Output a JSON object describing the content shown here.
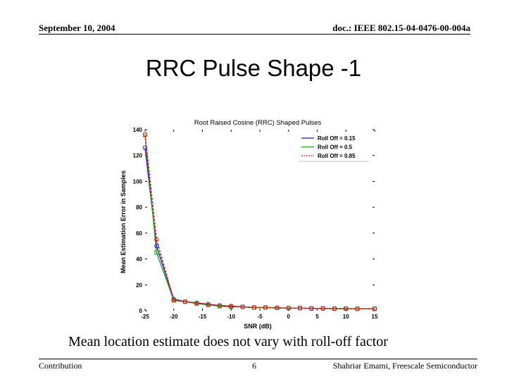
{
  "header": {
    "date": "September 10, 2004",
    "doc": "doc.: IEEE 802.15-04-0476-00-004a"
  },
  "slide_title": "RRC Pulse Shape -1",
  "caption": "Mean location estimate does not vary with roll-off factor",
  "footer": {
    "left": "Contribution",
    "page": "6",
    "right": "Shahriar Emami, Freescale Semiconductor"
  },
  "chart_data": {
    "type": "line",
    "title": "Root Raised Cosine (RRC) Shaped Pulses",
    "xlabel": "SNR (dB)",
    "ylabel": "Mean Estimation Error in Samples",
    "xlim": [
      -25,
      15
    ],
    "ylim": [
      0,
      140
    ],
    "xticks": [
      -25,
      -20,
      -15,
      -10,
      -5,
      0,
      5,
      10,
      15
    ],
    "yticks": [
      0,
      20,
      40,
      60,
      80,
      100,
      120,
      140
    ],
    "x": [
      -25,
      -23,
      -20,
      -18,
      -16,
      -14,
      -12,
      -10,
      -8,
      -6,
      -4,
      -2,
      0,
      2,
      4,
      6,
      8,
      10,
      12,
      15
    ],
    "legend_position": "top-right",
    "series": [
      {
        "name": "Roll Off = 0.15",
        "color": "#1f1fd8",
        "marker": "circle",
        "values": [
          126,
          50,
          9,
          7,
          6,
          5,
          4,
          3.5,
          3,
          2.5,
          2.5,
          2.2,
          2,
          2,
          1.8,
          1.8,
          1.6,
          1.6,
          1.5,
          1.5
        ]
      },
      {
        "name": "Roll Off = 0.5",
        "color": "#22a022",
        "marker": "square",
        "values": [
          136,
          45,
          8,
          7,
          5.5,
          4.5,
          3.5,
          3,
          3,
          2.5,
          2.5,
          2.2,
          2,
          2,
          1.8,
          1.8,
          1.6,
          1.6,
          1.5,
          1.5
        ]
      },
      {
        "name": "Roll Off = 0.85",
        "color": "#e01010",
        "marker": "circle-open",
        "values": [
          136,
          55,
          8,
          7,
          6,
          5,
          4,
          3.5,
          3,
          2.5,
          2.5,
          2.2,
          2,
          2,
          1.8,
          1.8,
          1.6,
          1.6,
          1.5,
          1.5
        ]
      }
    ]
  }
}
